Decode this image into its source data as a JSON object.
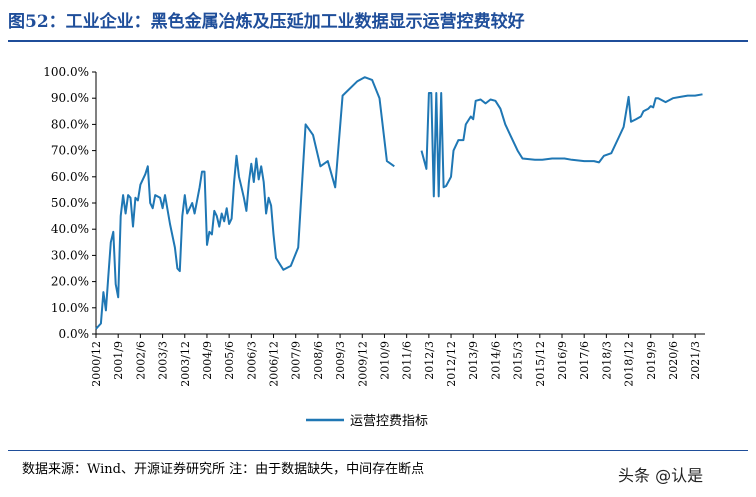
{
  "header": {
    "title": "图52：工业企业：黑色金属冶炼及压延加工业数据显示运营控费较好"
  },
  "footer": {
    "source": "数据来源：Wind、开源证券研究所 注：由于数据缺失，中间存在断点",
    "watermark": "头条 @认是"
  },
  "chart_data": {
    "type": "line",
    "title": "",
    "xlabel": "",
    "ylabel": "",
    "ylim": [
      0,
      100
    ],
    "x_range": [
      "2000-12",
      "2021-07"
    ],
    "yticks": [
      "0.0%",
      "10.0%",
      "20.0%",
      "30.0%",
      "40.0%",
      "50.0%",
      "60.0%",
      "70.0%",
      "80.0%",
      "90.0%",
      "100.0%"
    ],
    "xticks": [
      "2000/12",
      "2001/9",
      "2002/6",
      "2003/3",
      "2003/12",
      "2004/9",
      "2005/6",
      "2006/3",
      "2006/12",
      "2007/9",
      "2008/6",
      "2009/3",
      "2009/12",
      "2010/9",
      "2011/6",
      "2012/3",
      "2012/12",
      "2013/9",
      "2014/6",
      "2015/3",
      "2015/12",
      "2016/9",
      "2017/6",
      "2018/3",
      "2018/12",
      "2019/9",
      "2020/6",
      "2021/3"
    ],
    "grid": false,
    "legend_position": "bottom",
    "line_color": "#1f77b4",
    "series": [
      {
        "name": "运营控费指标",
        "segments": [
          [
            [
              "2000-12",
              2.0
            ],
            [
              "2001-02",
              4.0
            ],
            [
              "2001-03",
              16.0
            ],
            [
              "2001-04",
              9.0
            ],
            [
              "2001-05",
              22.0
            ],
            [
              "2001-06",
              35.0
            ],
            [
              "2001-07",
              39.0
            ],
            [
              "2001-08",
              19.0
            ],
            [
              "2001-09",
              14.0
            ],
            [
              "2001-10",
              45.0
            ],
            [
              "2001-11",
              53.0
            ],
            [
              "2001-12",
              46.0
            ],
            [
              "2002-01",
              53.0
            ],
            [
              "2002-02",
              52.0
            ],
            [
              "2002-03",
              41.0
            ],
            [
              "2002-04",
              52.0
            ],
            [
              "2002-05",
              51.0
            ],
            [
              "2002-06",
              57.0
            ],
            [
              "2002-08",
              61.0
            ],
            [
              "2002-09",
              64.0
            ],
            [
              "2002-10",
              50.0
            ],
            [
              "2002-11",
              48.0
            ],
            [
              "2002-12",
              53.0
            ],
            [
              "2003-02",
              52.0
            ],
            [
              "2003-03",
              48.0
            ],
            [
              "2003-04",
              53.0
            ],
            [
              "2003-06",
              42.0
            ],
            [
              "2003-08",
              33.0
            ],
            [
              "2003-09",
              25.0
            ],
            [
              "2003-10",
              24.0
            ],
            [
              "2003-11",
              45.0
            ],
            [
              "2003-12",
              53.0
            ],
            [
              "2004-01",
              46.0
            ],
            [
              "2004-02",
              48.0
            ],
            [
              "2004-03",
              50.0
            ],
            [
              "2004-04",
              46.0
            ],
            [
              "2004-06",
              56.0
            ],
            [
              "2004-07",
              62.0
            ],
            [
              "2004-08",
              62.0
            ],
            [
              "2004-09",
              34.0
            ],
            [
              "2004-10",
              39.0
            ],
            [
              "2004-11",
              38.0
            ],
            [
              "2004-12",
              47.0
            ],
            [
              "2005-01",
              45.0
            ],
            [
              "2005-02",
              41.0
            ],
            [
              "2005-03",
              46.0
            ],
            [
              "2005-04",
              43.0
            ],
            [
              "2005-05",
              48.0
            ],
            [
              "2005-06",
              42.0
            ],
            [
              "2005-07",
              44.0
            ],
            [
              "2005-08",
              58.0
            ],
            [
              "2005-09",
              68.0
            ],
            [
              "2005-10",
              60.0
            ],
            [
              "2005-11",
              56.0
            ],
            [
              "2005-12",
              52.0
            ],
            [
              "2006-01",
              47.0
            ],
            [
              "2006-02",
              58.0
            ],
            [
              "2006-03",
              65.0
            ],
            [
              "2006-04",
              58.0
            ],
            [
              "2006-05",
              67.0
            ],
            [
              "2006-06",
              59.0
            ],
            [
              "2006-07",
              64.0
            ],
            [
              "2006-08",
              58.0
            ],
            [
              "2006-09",
              46.0
            ],
            [
              "2006-10",
              52.0
            ],
            [
              "2006-11",
              49.0
            ],
            [
              "2006-12",
              38.0
            ],
            [
              "2007-01",
              29.0
            ],
            [
              "2007-03",
              26.0
            ],
            [
              "2007-04",
              24.5
            ],
            [
              "2007-07",
              26.0
            ],
            [
              "2007-10",
              33.0
            ],
            [
              "2008-01",
              80.0
            ],
            [
              "2008-04",
              76.0
            ],
            [
              "2008-07",
              64.0
            ],
            [
              "2008-10",
              66.0
            ],
            [
              "2009-01",
              56.0
            ],
            [
              "2009-04",
              91.0
            ],
            [
              "2009-10",
              96.5
            ],
            [
              "2010-01",
              98.0
            ],
            [
              "2010-04",
              97.0
            ],
            [
              "2010-07",
              90.0
            ],
            [
              "2010-10",
              66.0
            ],
            [
              "2011-01",
              64.0
            ]
          ],
          [
            [
              "2011-12",
              70.0
            ],
            [
              "2012-02",
              63.0
            ],
            [
              "2012-03",
              92.0
            ],
            [
              "2012-04",
              92.0
            ],
            [
              "2012-05",
              52.5
            ],
            [
              "2012-06",
              92.0
            ],
            [
              "2012-07",
              52.5
            ],
            [
              "2012-08",
              92.0
            ],
            [
              "2012-09",
              56.0
            ],
            [
              "2012-10",
              56.5
            ],
            [
              "2012-12",
              60.0
            ],
            [
              "2013-01",
              70.0
            ],
            [
              "2013-03",
              74.0
            ],
            [
              "2013-05",
              74.0
            ],
            [
              "2013-06",
              80.0
            ],
            [
              "2013-08",
              83.0
            ],
            [
              "2013-09",
              82.0
            ],
            [
              "2013-10",
              89.0
            ],
            [
              "2013-12",
              89.5
            ],
            [
              "2014-02",
              88.0
            ],
            [
              "2014-04",
              89.5
            ],
            [
              "2014-06",
              89.0
            ],
            [
              "2014-08",
              86.0
            ],
            [
              "2014-10",
              80.0
            ],
            [
              "2014-12",
              76.0
            ],
            [
              "2015-03",
              70.0
            ],
            [
              "2015-05",
              67.0
            ],
            [
              "2015-10",
              66.5
            ],
            [
              "2016-01",
              66.5
            ],
            [
              "2016-05",
              67.0
            ],
            [
              "2016-10",
              67.0
            ],
            [
              "2017-01",
              66.5
            ],
            [
              "2017-06",
              66.0
            ],
            [
              "2017-10",
              66.0
            ],
            [
              "2017-12",
              65.5
            ],
            [
              "2018-02",
              68.0
            ],
            [
              "2018-05",
              69.0
            ],
            [
              "2018-08",
              75.0
            ],
            [
              "2018-10",
              79.0
            ],
            [
              "2018-12",
              90.5
            ],
            [
              "2019-01",
              81.0
            ],
            [
              "2019-03",
              82.0
            ],
            [
              "2019-05",
              83.0
            ],
            [
              "2019-06",
              85.0
            ],
            [
              "2019-08",
              86.0
            ],
            [
              "2019-09",
              87.0
            ],
            [
              "2019-10",
              86.5
            ],
            [
              "2019-11",
              90.0
            ],
            [
              "2019-12",
              90.0
            ],
            [
              "2020-03",
              88.5
            ],
            [
              "2020-06",
              90.0
            ],
            [
              "2020-09",
              90.5
            ],
            [
              "2020-12",
              91.0
            ],
            [
              "2021-03",
              91.0
            ],
            [
              "2021-06",
              91.5
            ]
          ]
        ]
      }
    ]
  }
}
